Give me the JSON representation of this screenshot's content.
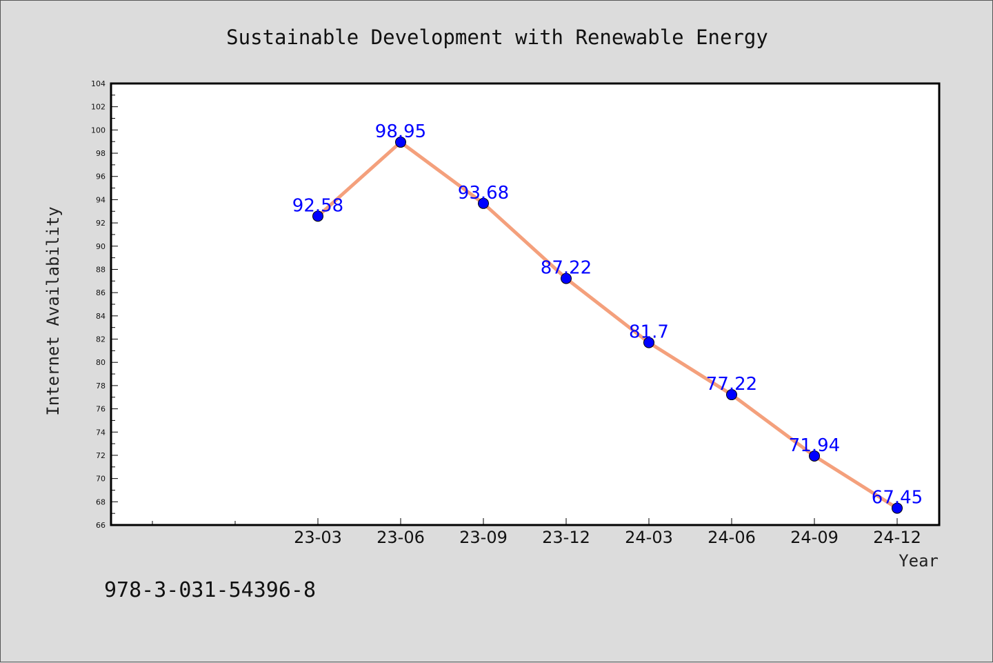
{
  "chart_data": {
    "type": "line",
    "title": "Sustainable Development with Renewable Energy",
    "xlabel": "Year",
    "ylabel": "Internet Availability",
    "categories": [
      "23-03",
      "23-06",
      "23-09",
      "23-12",
      "24-03",
      "24-06",
      "24-09",
      "24-12"
    ],
    "series": [
      {
        "values": [
          92.58,
          98.95,
          93.68,
          87.22,
          81.7,
          77.22,
          71.94,
          67.45
        ]
      }
    ],
    "data_labels": [
      "92.58",
      "98.95",
      "93.68",
      "87.22",
      "81.7",
      "77.22",
      "71.94",
      "67.45"
    ],
    "ylim": [
      66,
      104
    ],
    "yticks": [
      "66",
      "68",
      "70",
      "72",
      "74",
      "76",
      "78",
      "80",
      "82",
      "84",
      "86",
      "88",
      "90",
      "92",
      "94",
      "96",
      "98",
      "100",
      "102",
      "104"
    ],
    "grid": false,
    "legend": "none",
    "colors": {
      "line": "#f4a07c",
      "marker": "#0000ff",
      "label": "#0000ff",
      "background": "#dcdcdc",
      "plot_bg": "#ffffff"
    }
  },
  "footer": {
    "isbn": "978-3-031-54396-8"
  }
}
